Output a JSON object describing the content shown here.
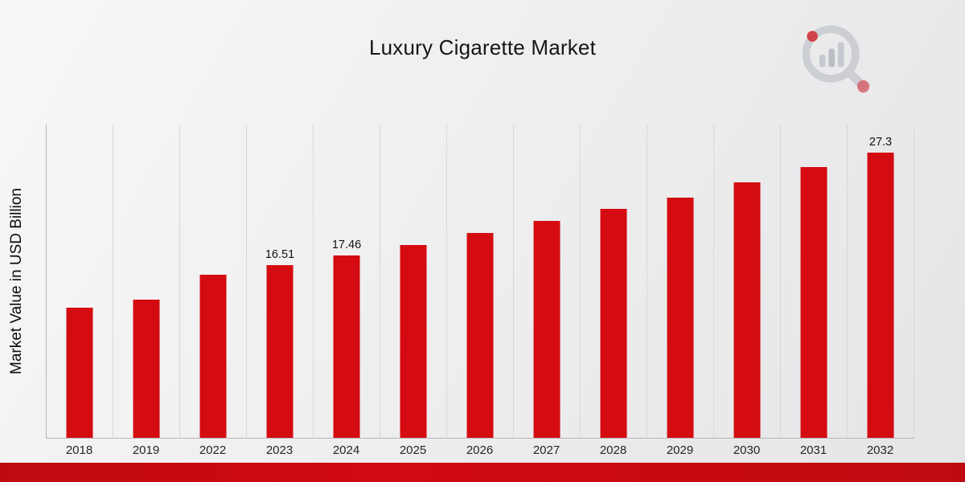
{
  "page": {
    "title": "Luxury Cigarette Market",
    "logo": "market-research-future-logo",
    "accent_color": "#bf0b10",
    "bar_color": "#d40b10",
    "background_color": "#ededee"
  },
  "chart_data": {
    "type": "bar",
    "title": "Luxury Cigarette Market",
    "xlabel": "",
    "ylabel": "Market Value in USD Billion",
    "categories": [
      "2018",
      "2019",
      "2022",
      "2023",
      "2024",
      "2025",
      "2026",
      "2027",
      "2028",
      "2029",
      "2030",
      "2031",
      "2032"
    ],
    "values": [
      12.5,
      13.2,
      15.6,
      16.51,
      17.46,
      18.45,
      19.6,
      20.75,
      21.9,
      23.0,
      24.45,
      25.95,
      27.3
    ],
    "data_labels": [
      "",
      "",
      "",
      "16.51",
      "17.46",
      "",
      "",
      "",
      "",
      "",
      "",
      "",
      "27.3"
    ],
    "ylim": [
      0,
      30
    ],
    "grid": "vertical-gridlines",
    "legend": "none",
    "bar_color": "#d40b10"
  }
}
